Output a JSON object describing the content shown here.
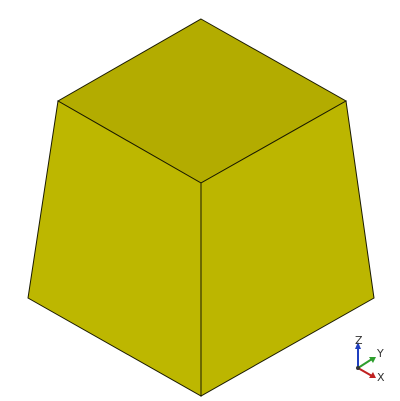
{
  "viewport": {
    "background_color": "#ffffff",
    "model": {
      "shape": "frustum",
      "top_face_color": "#b3ac00",
      "left_face_color": "#bdb700",
      "right_face_color": "#bcb600",
      "edge_color": "#1a1a00"
    },
    "axis_triad": {
      "z_label": "Z",
      "y_label": "Y",
      "x_label": "X",
      "z_color": "#1f3fbf",
      "y_color": "#2e9e2e",
      "x_color": "#c02020"
    }
  }
}
